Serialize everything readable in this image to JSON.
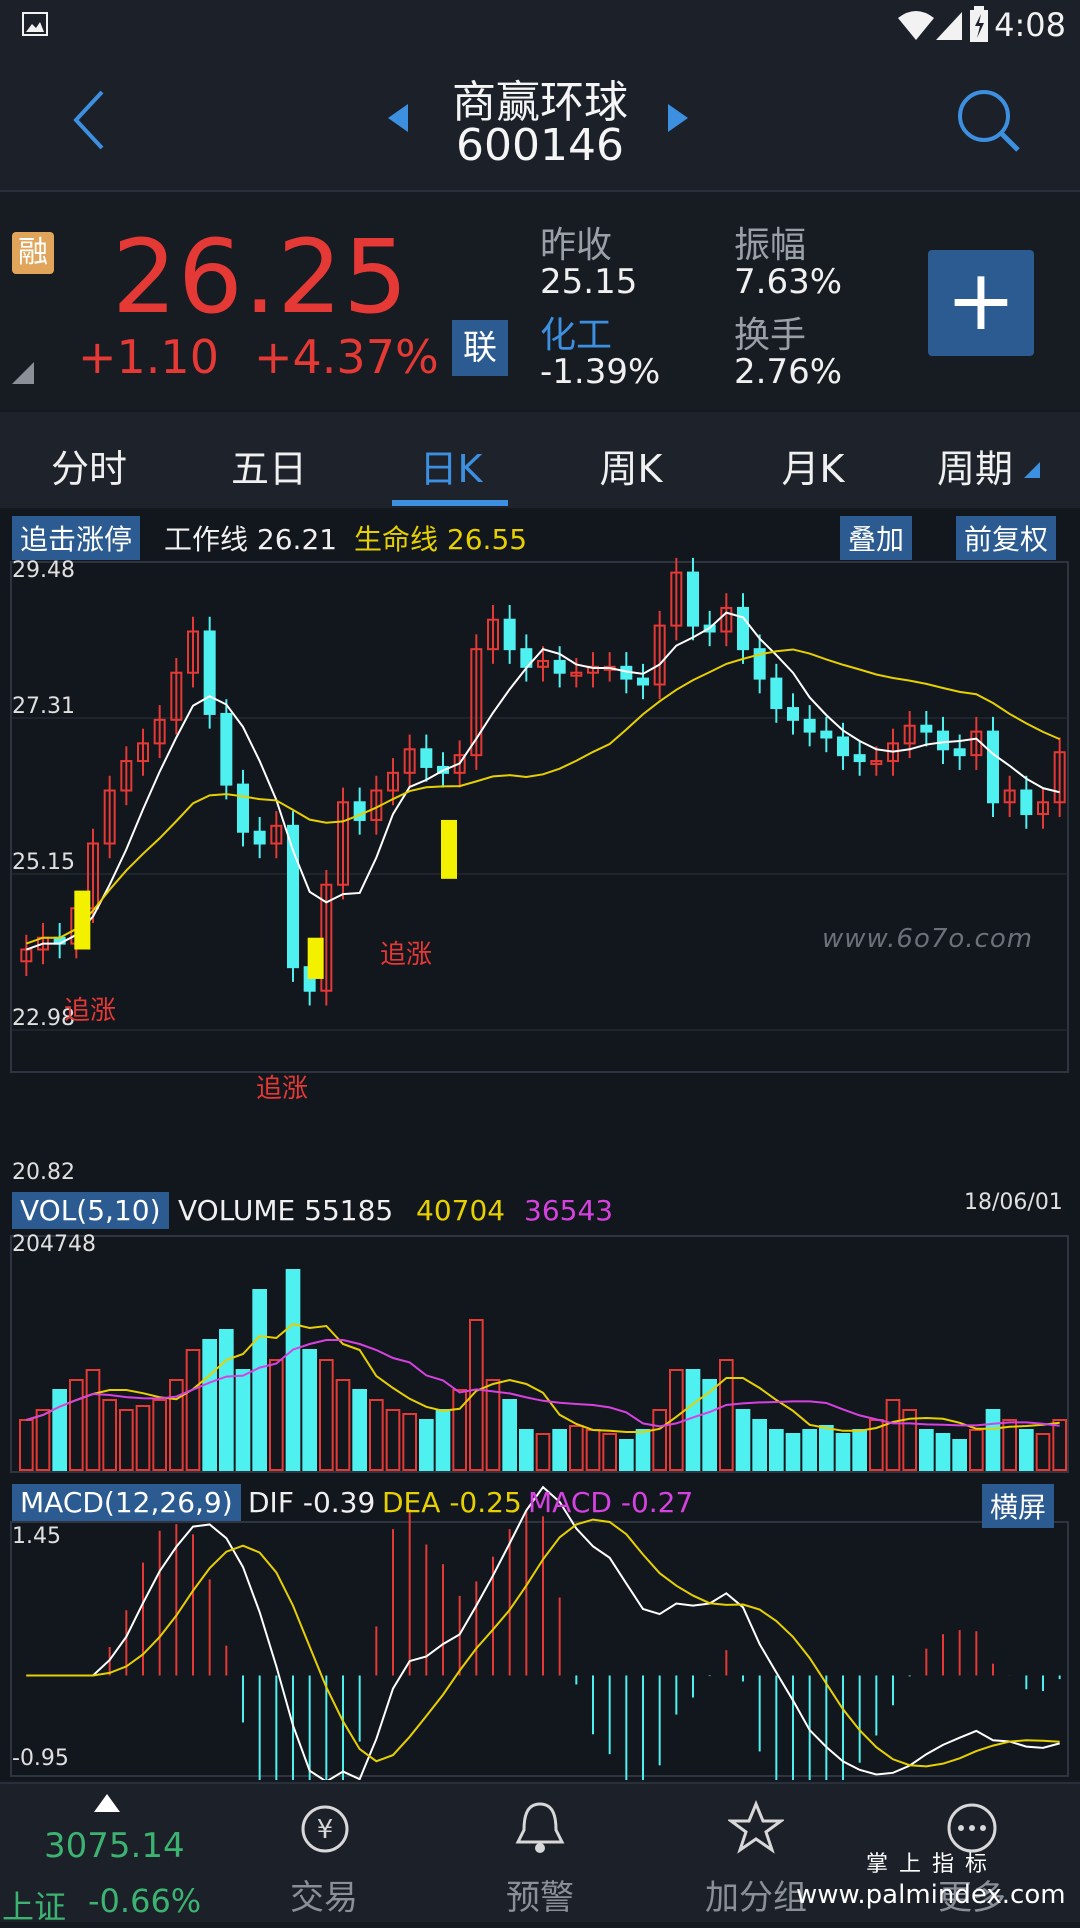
{
  "status_bar": {
    "time": "4:08"
  },
  "header": {
    "name": "商赢环球",
    "code": "600146"
  },
  "quote": {
    "badge": "融",
    "price": "26.25",
    "change": "+1.10",
    "change_pct": "+4.37%",
    "lian_button": "联",
    "prev_close_label": "昨收",
    "prev_close": "25.15",
    "amplitude_label": "振幅",
    "amplitude": "7.63%",
    "sector_label": "化工",
    "sector_pct": "-1.39%",
    "turnover_label": "换手",
    "turnover": "2.76%",
    "add_label": "+"
  },
  "tabs": [
    "分时",
    "五日",
    "日K",
    "周K",
    "月K",
    "周期"
  ],
  "kline": {
    "badge": "追击涨停",
    "work_label": "工作线",
    "work_value": "26.21",
    "life_label": "生命线",
    "life_value": "26.55",
    "overlay_btn": "叠加",
    "adjust_btn": "前复权",
    "y_labels": [
      "29.48",
      "27.31",
      "25.15",
      "22.98",
      "20.82"
    ],
    "signal_label": "追涨",
    "watermark": "www.6o7o.com"
  },
  "volume": {
    "badge": "VOL(5,10)",
    "label": "VOLUME",
    "v1": "55185",
    "v2": "40704",
    "v3": "36543",
    "date": "18/06/01",
    "max": "204748"
  },
  "macd": {
    "badge": "MACD(12,26,9)",
    "dif_label": "DIF",
    "dif": "-0.39",
    "dea_label": "DEA",
    "dea": "-0.25",
    "macd_label": "MACD",
    "macd_val": "-0.27",
    "landscape_btn": "横屏",
    "top": "1.45",
    "bottom": "-0.95"
  },
  "bottom_nav": {
    "index_value": "3075.14",
    "index_name": "上证",
    "index_pct": "-0.66%",
    "items": [
      "交易",
      "预警",
      "加分组",
      "更多"
    ],
    "brand_cn": "掌 上 指 标",
    "brand_url": "www.palmindex.com"
  },
  "colors": {
    "up": "#e53935",
    "down": "#4ff0f0",
    "ma_white": "#ffffff",
    "ma_yellow": "#e6d000",
    "accent": "#3d8fe0"
  }
}
